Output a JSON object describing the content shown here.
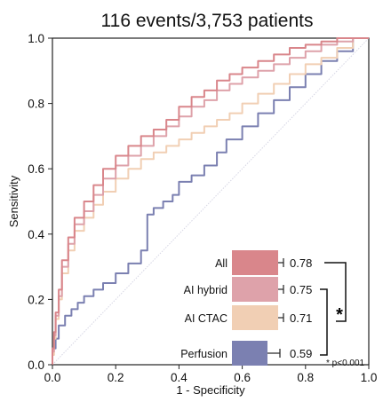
{
  "chart_data": {
    "type": "line",
    "title": "116 events/3,753 patients",
    "xlabel": "1 - Specificity",
    "ylabel": "Sensitivity",
    "xlim": [
      0,
      1
    ],
    "ylim": [
      0,
      1
    ],
    "xticks": [
      "0.0",
      "0.2",
      "0.4",
      "0.6",
      "0.8",
      "1.0"
    ],
    "yticks": [
      "0.0",
      "0.2",
      "0.4",
      "0.6",
      "0.8",
      "1.0"
    ],
    "reference_line": "diagonal",
    "legend_position": "bottom-right",
    "series": [
      {
        "name": "All",
        "auc": "0.78",
        "color": "#d9868b",
        "x": [
          0,
          0.005,
          0.01,
          0.02,
          0.03,
          0.05,
          0.07,
          0.1,
          0.13,
          0.16,
          0.2,
          0.24,
          0.28,
          0.32,
          0.36,
          0.4,
          0.44,
          0.48,
          0.52,
          0.56,
          0.6,
          0.65,
          0.7,
          0.75,
          0.8,
          0.85,
          0.9,
          0.95,
          1
        ],
        "y": [
          0,
          0.05,
          0.1,
          0.16,
          0.23,
          0.32,
          0.39,
          0.45,
          0.5,
          0.55,
          0.6,
          0.64,
          0.67,
          0.7,
          0.72,
          0.75,
          0.79,
          0.82,
          0.84,
          0.87,
          0.89,
          0.91,
          0.93,
          0.95,
          0.97,
          0.98,
          0.99,
          1.0,
          1.0
        ]
      },
      {
        "name": "AI hybrid",
        "auc": "0.75",
        "color": "#dea2aa",
        "x": [
          0,
          0.005,
          0.01,
          0.02,
          0.03,
          0.05,
          0.07,
          0.1,
          0.13,
          0.16,
          0.2,
          0.24,
          0.28,
          0.32,
          0.36,
          0.4,
          0.44,
          0.48,
          0.52,
          0.56,
          0.6,
          0.65,
          0.7,
          0.75,
          0.8,
          0.85,
          0.9,
          0.95,
          1
        ],
        "y": [
          0,
          0.04,
          0.09,
          0.15,
          0.21,
          0.3,
          0.37,
          0.43,
          0.47,
          0.52,
          0.57,
          0.61,
          0.64,
          0.67,
          0.7,
          0.73,
          0.76,
          0.79,
          0.81,
          0.84,
          0.86,
          0.88,
          0.9,
          0.92,
          0.94,
          0.96,
          0.98,
          0.99,
          1.0
        ]
      },
      {
        "name": "AI CTAC",
        "auc": "0.71",
        "color": "#f1cfb4",
        "x": [
          0,
          0.005,
          0.01,
          0.02,
          0.03,
          0.05,
          0.07,
          0.1,
          0.13,
          0.16,
          0.2,
          0.24,
          0.28,
          0.32,
          0.36,
          0.4,
          0.44,
          0.48,
          0.52,
          0.56,
          0.6,
          0.65,
          0.7,
          0.75,
          0.8,
          0.85,
          0.9,
          0.95,
          1
        ],
        "y": [
          0,
          0.03,
          0.08,
          0.14,
          0.2,
          0.28,
          0.35,
          0.41,
          0.45,
          0.49,
          0.53,
          0.57,
          0.6,
          0.63,
          0.65,
          0.67,
          0.69,
          0.71,
          0.73,
          0.75,
          0.77,
          0.8,
          0.83,
          0.86,
          0.89,
          0.92,
          0.94,
          0.97,
          1.0
        ]
      },
      {
        "name": "Perfusion",
        "auc": "0.59",
        "color": "#7b80b1",
        "x": [
          0,
          0.01,
          0.02,
          0.04,
          0.06,
          0.08,
          0.1,
          0.13,
          0.16,
          0.2,
          0.24,
          0.28,
          0.3,
          0.32,
          0.35,
          0.38,
          0.4,
          0.44,
          0.48,
          0.52,
          0.55,
          0.6,
          0.65,
          0.7,
          0.75,
          0.8,
          0.85,
          0.9,
          0.95,
          1
        ],
        "y": [
          0,
          0.05,
          0.08,
          0.12,
          0.15,
          0.17,
          0.19,
          0.21,
          0.23,
          0.25,
          0.28,
          0.31,
          0.35,
          0.46,
          0.48,
          0.5,
          0.52,
          0.56,
          0.58,
          0.61,
          0.65,
          0.69,
          0.73,
          0.77,
          0.81,
          0.85,
          0.89,
          0.93,
          0.96,
          1.0
        ]
      }
    ],
    "significance": {
      "bracket_label": "*",
      "note": "* p<0.001"
    }
  }
}
